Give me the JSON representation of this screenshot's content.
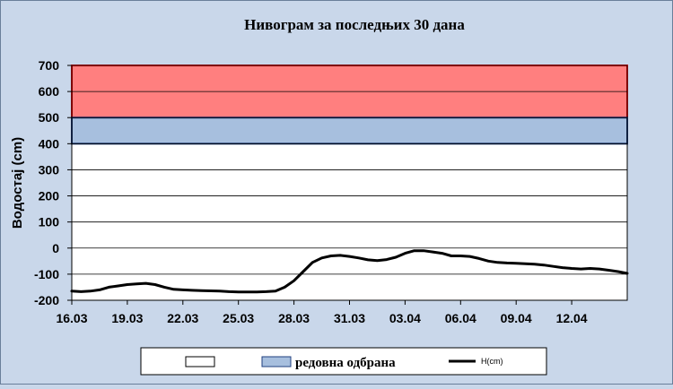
{
  "chart_data": {
    "type": "line",
    "title": "Нивограм за последњих 30 дана",
    "ylabel": "Водостај (cm)",
    "xlabel": "",
    "ylim": [
      -200,
      700
    ],
    "yticks": [
      -200,
      -100,
      0,
      100,
      200,
      300,
      400,
      500,
      600,
      700
    ],
    "grid": true,
    "legend_placement": "bottom",
    "x_start": "16.03",
    "x_end": "15.04",
    "x_tick_labels": [
      "16.03",
      "19.03",
      "22.03",
      "25.03",
      "28.03",
      "31.03",
      "03.04",
      "06.04",
      "09.04",
      "12.04"
    ],
    "bands": [
      {
        "name": "",
        "from": 500,
        "to": 700,
        "color": "#ff7f7f",
        "edge_color": "#ff0000"
      },
      {
        "name": "редовна одбрана",
        "from": 400,
        "to": 500,
        "color": "#a7bfde",
        "edge_color": "#1f3f7f"
      }
    ],
    "series": [
      {
        "name": "H(cm)",
        "color": "#000000",
        "x": [
          0,
          0.5,
          1,
          1.5,
          2,
          2.5,
          3,
          3.5,
          4,
          4.5,
          5,
          5.5,
          6,
          6.5,
          7,
          7.5,
          8,
          8.5,
          9,
          9.5,
          10,
          10.5,
          11,
          11.5,
          12,
          12.5,
          13,
          13.5,
          14,
          14.5,
          15,
          15.5,
          16,
          16.5,
          17,
          17.5,
          18,
          18.5,
          19,
          19.5,
          20,
          20.5,
          21,
          21.5,
          22,
          22.5,
          23,
          23.5,
          24,
          24.5,
          25,
          25.5,
          26,
          26.5,
          27,
          27.5,
          28,
          28.5,
          29,
          29.5,
          30
        ],
        "values": [
          -165,
          -167,
          -165,
          -160,
          -150,
          -145,
          -140,
          -137,
          -135,
          -140,
          -150,
          -158,
          -160,
          -162,
          -163,
          -164,
          -165,
          -167,
          -168,
          -168,
          -168,
          -167,
          -165,
          -150,
          -125,
          -90,
          -55,
          -38,
          -30,
          -28,
          -32,
          -38,
          -45,
          -48,
          -44,
          -35,
          -20,
          -10,
          -10,
          -15,
          -20,
          -30,
          -30,
          -32,
          -40,
          -50,
          -55,
          -57,
          -58,
          -60,
          -62,
          -65,
          -70,
          -75,
          -78,
          -80,
          -78,
          -80,
          -85,
          -90,
          -97
        ]
      }
    ]
  },
  "legend": {
    "entries": [
      "",
      "редовна одбрана",
      "H(cm)"
    ]
  },
  "colors": {
    "background": "#c9d7ea",
    "plot_area": "#ffffff",
    "grid": "#000000"
  }
}
